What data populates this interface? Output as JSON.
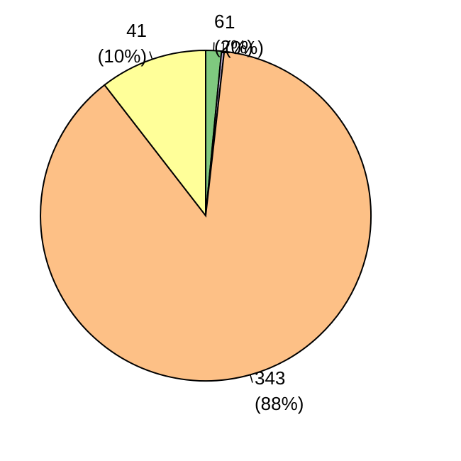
{
  "chart_data": {
    "type": "pie",
    "title": "",
    "direction": "clockwise",
    "start_angle_deg": 90,
    "total": 391,
    "background": "#FFFFFF",
    "stroke_color": "#000000",
    "legend_position": "none",
    "slices": [
      {
        "label": "6",
        "pct_label": "(2%)",
        "value": 6,
        "percent": 2,
        "color": "#7FC97F"
      },
      {
        "label": "1",
        "pct_label": "(0%)",
        "value": 1,
        "percent": 0,
        "color": "#BEAED4"
      },
      {
        "label": "343",
        "pct_label": "(88%)",
        "value": 343,
        "percent": 88,
        "color": "#FDC086"
      },
      {
        "label": "41",
        "pct_label": "(10%)",
        "value": 41,
        "percent": 10,
        "color": "#FFFF99"
      }
    ]
  }
}
